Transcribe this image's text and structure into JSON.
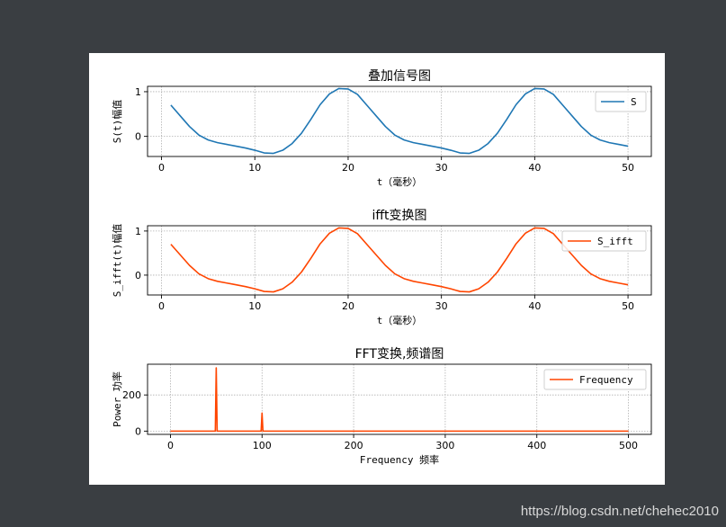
{
  "watermark": "https://blog.csdn.net/chehec2010",
  "colors": {
    "blue": "#1f77b4",
    "red": "#ff4500",
    "grid": "#b0b0b0",
    "page_bg": "#3a3e42"
  },
  "chart_data": [
    {
      "type": "line",
      "title": "叠加信号图",
      "xlabel": "t（毫秒）",
      "ylabel": "S(t)幅值",
      "xlim": [
        -1.5,
        52.5
      ],
      "ylim": [
        -0.45,
        1.12
      ],
      "xticks": [
        0,
        10,
        20,
        30,
        40,
        50
      ],
      "yticks": [
        0,
        1
      ],
      "grid": true,
      "legend": "upper right",
      "series": [
        {
          "name": "S",
          "color": "#1f77b4",
          "x": [
            1,
            2,
            3,
            4,
            5,
            6,
            7,
            8,
            9,
            10,
            11,
            12,
            13,
            14,
            15,
            16,
            17,
            18,
            19,
            20,
            21,
            22,
            23,
            24,
            25,
            26,
            27,
            28,
            29,
            30,
            31,
            32,
            33,
            34,
            35,
            36,
            37,
            38,
            39,
            40,
            41,
            42,
            43,
            44,
            45,
            46,
            47,
            48,
            49,
            50
          ],
          "y": [
            0.7,
            0.46,
            0.22,
            0.03,
            -0.08,
            -0.14,
            -0.18,
            -0.22,
            -0.26,
            -0.31,
            -0.37,
            -0.38,
            -0.31,
            -0.16,
            0.07,
            0.38,
            0.71,
            0.95,
            1.07,
            1.06,
            0.94,
            0.7,
            0.46,
            0.22,
            0.03,
            -0.08,
            -0.14,
            -0.18,
            -0.22,
            -0.26,
            -0.31,
            -0.37,
            -0.38,
            -0.31,
            -0.16,
            0.07,
            0.38,
            0.71,
            0.95,
            1.07,
            1.06,
            0.94,
            0.7,
            0.46,
            0.22,
            0.03,
            -0.08,
            -0.14,
            -0.18,
            -0.22
          ]
        }
      ]
    },
    {
      "type": "line",
      "title": "ifft变换图",
      "xlabel": "t（毫秒）",
      "ylabel": "S_ifft(t)幅值",
      "xlim": [
        -1.5,
        52.5
      ],
      "ylim": [
        -0.45,
        1.12
      ],
      "xticks": [
        0,
        10,
        20,
        30,
        40,
        50
      ],
      "yticks": [
        0,
        1
      ],
      "grid": true,
      "legend": "upper right",
      "series": [
        {
          "name": "S_ifft",
          "color": "#ff4500",
          "x": [
            1,
            2,
            3,
            4,
            5,
            6,
            7,
            8,
            9,
            10,
            11,
            12,
            13,
            14,
            15,
            16,
            17,
            18,
            19,
            20,
            21,
            22,
            23,
            24,
            25,
            26,
            27,
            28,
            29,
            30,
            31,
            32,
            33,
            34,
            35,
            36,
            37,
            38,
            39,
            40,
            41,
            42,
            43,
            44,
            45,
            46,
            47,
            48,
            49,
            50
          ],
          "y": [
            0.7,
            0.46,
            0.22,
            0.03,
            -0.08,
            -0.14,
            -0.18,
            -0.22,
            -0.26,
            -0.31,
            -0.37,
            -0.38,
            -0.31,
            -0.16,
            0.07,
            0.38,
            0.71,
            0.95,
            1.07,
            1.06,
            0.94,
            0.7,
            0.46,
            0.22,
            0.03,
            -0.08,
            -0.14,
            -0.18,
            -0.22,
            -0.26,
            -0.31,
            -0.37,
            -0.38,
            -0.31,
            -0.16,
            0.07,
            0.38,
            0.71,
            0.95,
            1.07,
            1.06,
            0.94,
            0.7,
            0.46,
            0.22,
            0.03,
            -0.08,
            -0.14,
            -0.18,
            -0.22
          ]
        }
      ]
    },
    {
      "type": "line",
      "title": "FFT变换,频谱图",
      "xlabel": "Frequency 频率",
      "ylabel": "Power 功率",
      "xlim": [
        -25,
        525
      ],
      "ylim": [
        -18,
        370
      ],
      "xticks": [
        0,
        100,
        200,
        300,
        400,
        500
      ],
      "yticks": [
        0,
        200
      ],
      "grid": true,
      "legend": "upper right",
      "series": [
        {
          "name": "Frequency",
          "color": "#ff4500",
          "x": [
            0,
            49,
            50,
            51,
            99,
            100,
            101,
            500
          ],
          "y": [
            0,
            0,
            350,
            0,
            0,
            100,
            0,
            0
          ]
        }
      ]
    }
  ]
}
